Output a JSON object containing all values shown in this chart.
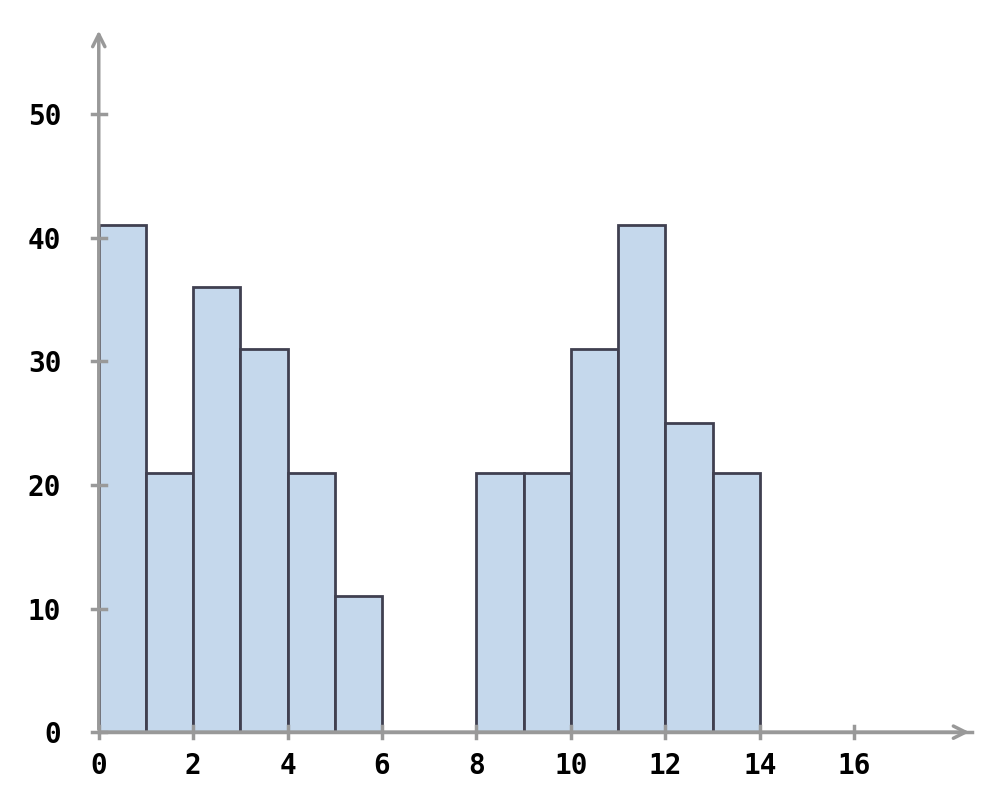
{
  "bar_left_edges": [
    0,
    1,
    2,
    3,
    4,
    5,
    8,
    9,
    10,
    11,
    12,
    13
  ],
  "bar_heights": [
    41,
    21,
    36,
    31,
    21,
    11,
    21,
    21,
    31,
    41,
    25,
    21
  ],
  "bar_width": 1.0,
  "bar_color": "#c5d8ec",
  "bar_edgecolor": "#404050",
  "bar_linewidth": 2.0,
  "xticks": [
    0,
    2,
    4,
    6,
    8,
    10,
    12,
    14,
    16
  ],
  "yticks": [
    0,
    10,
    20,
    30,
    40,
    50
  ],
  "xlim": [
    -0.5,
    18.5
  ],
  "ylim": [
    -0.5,
    57
  ],
  "plot_ylim": [
    0,
    55
  ],
  "tick_fontsize": 20,
  "axis_color": "#999999",
  "axis_lw": 2.5,
  "background_color": "#ffffff",
  "arrow_mutation_scale": 22,
  "yaxis_x": 0,
  "xaxis_y": 0
}
